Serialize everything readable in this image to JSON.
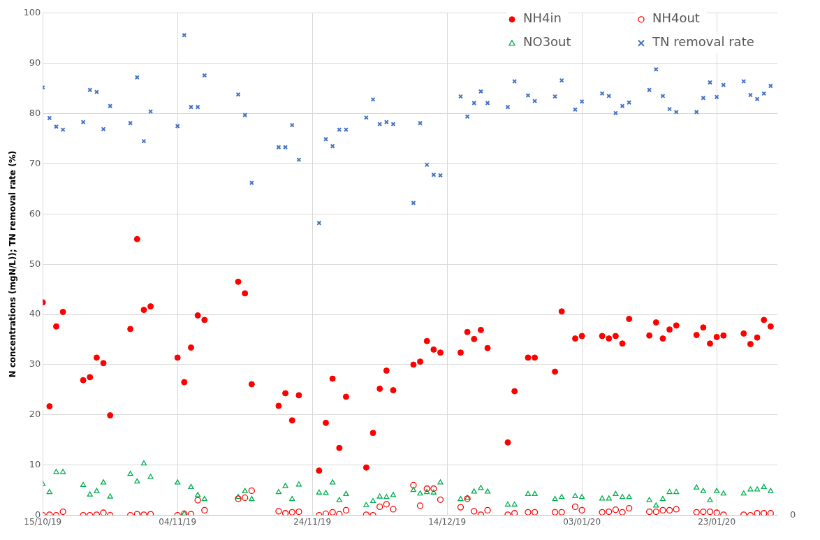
{
  "chart_data": {
    "type": "scatter",
    "ylabel": "N concentrations (mgN/L)); TN removal rate (%)",
    "x": [
      "2019-10-15",
      "2019-10-16",
      "2019-10-17",
      "2019-10-18",
      "2019-10-21",
      "2019-10-22",
      "2019-10-23",
      "2019-10-24",
      "2019-10-25",
      "2019-10-28",
      "2019-10-29",
      "2019-10-30",
      "2019-10-31",
      "2019-11-04",
      "2019-11-05",
      "2019-11-06",
      "2019-11-07",
      "2019-11-08",
      "2019-11-13",
      "2019-11-14",
      "2019-11-15",
      "2019-11-19",
      "2019-11-20",
      "2019-11-21",
      "2019-11-22",
      "2019-11-25",
      "2019-11-26",
      "2019-11-27",
      "2019-11-28",
      "2019-11-29",
      "2019-12-02",
      "2019-12-03",
      "2019-12-04",
      "2019-12-05",
      "2019-12-06",
      "2019-12-09",
      "2019-12-10",
      "2019-12-11",
      "2019-12-12",
      "2019-12-13",
      "2019-12-16",
      "2019-12-17",
      "2019-12-18",
      "2019-12-19",
      "2019-12-20",
      "2019-12-23",
      "2019-12-24",
      "2019-12-26",
      "2019-12-27",
      "2019-12-30",
      "2019-12-31",
      "2020-01-02",
      "2020-01-03",
      "2020-01-06",
      "2020-01-07",
      "2020-01-08",
      "2020-01-09",
      "2020-01-10",
      "2020-01-13",
      "2020-01-14",
      "2020-01-15",
      "2020-01-16",
      "2020-01-17",
      "2020-01-20",
      "2020-01-21",
      "2020-01-22",
      "2020-01-23",
      "2020-01-24",
      "2020-01-27",
      "2020-01-28",
      "2020-01-29",
      "2020-01-30",
      "2020-01-31"
    ],
    "series": [
      {
        "name": "NH4in",
        "color": "#ff0000",
        "marker": "circle",
        "values": [
          42.4,
          21.7,
          37.6,
          40.5,
          26.9,
          27.5,
          31.4,
          30.3,
          19.9,
          37.1,
          55.0,
          40.9,
          41.6,
          31.4,
          26.5,
          33.4,
          39.8,
          38.9,
          46.5,
          44.2,
          26.1,
          21.8,
          24.3,
          18.9,
          23.9,
          8.9,
          18.4,
          27.2,
          13.4,
          23.6,
          9.5,
          16.4,
          25.2,
          28.8,
          24.9,
          30.0,
          30.6,
          34.7,
          33.0,
          32.4,
          32.4,
          36.5,
          35.1,
          36.9,
          33.3,
          14.5,
          24.7,
          31.4,
          31.4,
          28.6,
          40.6,
          35.2,
          35.7,
          35.7,
          35.2,
          35.7,
          34.2,
          39.1,
          35.8,
          38.4,
          35.2,
          37.0,
          37.8,
          35.9,
          37.4,
          34.2,
          35.5,
          35.8,
          36.2,
          34.1,
          35.4,
          38.9,
          37.6
        ]
      },
      {
        "name": "NH4out",
        "color": "#ff0000",
        "marker": "circle",
        "values": [
          0.0,
          0.1,
          0.0,
          0.7,
          0.0,
          0.0,
          0.1,
          0.5,
          0.0,
          0.0,
          0.2,
          0.1,
          0.2,
          0.0,
          0.3,
          0.2,
          3.0,
          1.0,
          3.3,
          3.5,
          4.9,
          0.8,
          0.4,
          0.6,
          0.7,
          0.0,
          0.3,
          0.6,
          0.2,
          1.0,
          0.1,
          0.0,
          1.7,
          2.2,
          1.2,
          6.0,
          1.9,
          5.3,
          5.3,
          3.1,
          1.6,
          3.3,
          0.8,
          0.1,
          1.0,
          0.1,
          0.4,
          0.6,
          0.6,
          0.6,
          0.6,
          1.7,
          1.0,
          0.6,
          0.7,
          1.1,
          0.6,
          1.4,
          0.7,
          0.7,
          1.0,
          1.0,
          1.2,
          0.6,
          0.7,
          0.7,
          0.5,
          0.1,
          0.1,
          0.0,
          0.4,
          0.4,
          0.4
        ]
      },
      {
        "name": "NO3out",
        "color": "#00b050",
        "marker": "triangle",
        "values": [
          6.2,
          4.6,
          8.6,
          8.6,
          6.0,
          4.1,
          4.8,
          6.5,
          3.7,
          8.2,
          6.7,
          10.3,
          7.6,
          6.5,
          0.3,
          5.6,
          4.0,
          3.2,
          3.6,
          4.8,
          3.2,
          4.6,
          5.8,
          3.2,
          6.1,
          4.5,
          4.4,
          6.5,
          3.0,
          4.2,
          2.0,
          2.8,
          3.7,
          3.6,
          4.0,
          5.0,
          4.3,
          4.6,
          4.5,
          6.5,
          3.2,
          3.4,
          4.7,
          5.4,
          4.7,
          2.1,
          2.1,
          4.2,
          4.2,
          3.2,
          3.6,
          3.8,
          3.6,
          3.3,
          3.3,
          4.2,
          3.6,
          3.6,
          3.0,
          1.9,
          3.2,
          4.6,
          4.6,
          5.5,
          4.8,
          3.0,
          4.8,
          4.3,
          4.3,
          5.1,
          5.1,
          5.6,
          4.8
        ]
      },
      {
        "name": "TN removal rate",
        "color": "#4472c4",
        "marker": "cross",
        "values": [
          85.2,
          79.1,
          77.4,
          76.8,
          78.3,
          84.7,
          84.3,
          76.9,
          81.5,
          78.1,
          87.2,
          74.5,
          80.4,
          77.5,
          95.6,
          81.3,
          81.3,
          87.6,
          83.8,
          79.7,
          66.2,
          73.3,
          73.3,
          77.7,
          70.8,
          58.2,
          74.9,
          73.5,
          76.8,
          76.8,
          79.2,
          82.8,
          77.9,
          78.3,
          77.9,
          62.2,
          78.1,
          69.8,
          67.8,
          67.7,
          83.4,
          79.4,
          82.1,
          84.4,
          82.1,
          81.3,
          86.4,
          83.6,
          82.5,
          83.4,
          86.6,
          80.8,
          82.4,
          84.0,
          83.5,
          80.1,
          81.5,
          82.2,
          84.7,
          88.8,
          83.5,
          80.9,
          80.3,
          80.3,
          83.1,
          86.2,
          83.3,
          85.7,
          86.4,
          83.7,
          82.9,
          84.0,
          85.5
        ]
      }
    ],
    "xlim": [
      "2019-10-15",
      "2020-02-01"
    ],
    "xticks": [
      {
        "value": "2019-10-15",
        "label": "15/10/19"
      },
      {
        "value": "2019-11-04",
        "label": "04/11/19"
      },
      {
        "value": "2019-11-24",
        "label": "24/11/19"
      },
      {
        "value": "2019-12-14",
        "label": "14/12/19"
      },
      {
        "value": "2020-01-03",
        "label": "03/01/20"
      },
      {
        "value": "2020-01-23",
        "label": "23/01/20"
      }
    ],
    "ylim": [
      0,
      100
    ],
    "yticks": [
      0,
      10,
      20,
      30,
      40,
      50,
      60,
      70,
      80,
      90,
      100
    ],
    "annotations": [
      "0"
    ],
    "grid": true,
    "legend": "top right"
  }
}
